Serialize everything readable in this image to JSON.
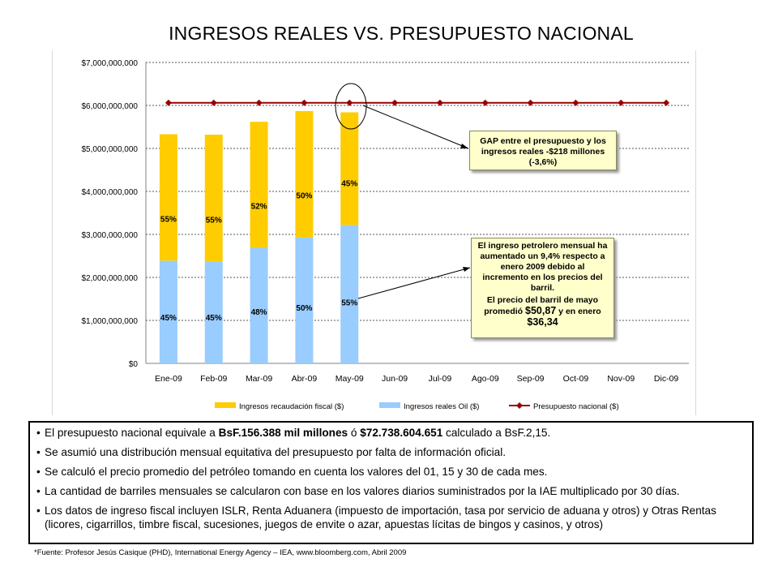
{
  "title": "INGRESOS REALES VS. PRESUPUESTO NACIONAL",
  "chart_data": {
    "type": "bar",
    "stacked": true,
    "categories": [
      "Ene-09",
      "Feb-09",
      "Mar-09",
      "Abr-09",
      "May-09",
      "Jun-09",
      "Jul-09",
      "Ago-09",
      "Sep-09",
      "Oct-09",
      "Nov-09",
      "Dic-09"
    ],
    "y_ticks": [
      "$0",
      "$1,000,000,000",
      "$2,000,000,000",
      "$3,000,000,000",
      "$4,000,000,000",
      "$5,000,000,000",
      "$6,000,000,000",
      "$7,000,000,000"
    ],
    "ylim": [
      0,
      7000000000
    ],
    "grid": true,
    "legend_placement": "bottom",
    "series": [
      {
        "name": "Ingresos reales Oil ($)",
        "kind": "bar",
        "color": "#99ccff",
        "values": [
          2390000000,
          2370000000,
          2690000000,
          2930000000,
          3220000000,
          null,
          null,
          null,
          null,
          null,
          null,
          null
        ],
        "labels": [
          "45%",
          "45%",
          "48%",
          "50%",
          "55%",
          "",
          "",
          "",
          "",
          "",
          "",
          ""
        ]
      },
      {
        "name": "Ingresos recaudación fiscal ($)",
        "kind": "bar",
        "color": "#ffcc00",
        "values": [
          2940000000,
          2950000000,
          2930000000,
          2940000000,
          2620000000,
          null,
          null,
          null,
          null,
          null,
          null,
          null
        ],
        "labels": [
          "55%",
          "55%",
          "52%",
          "50%",
          "45%",
          "",
          "",
          "",
          "",
          "",
          "",
          ""
        ]
      },
      {
        "name": "Presupuesto nacional ($)",
        "kind": "line",
        "color": "#990000",
        "values": [
          6061000000,
          6061000000,
          6061000000,
          6061000000,
          6061000000,
          6061000000,
          6061000000,
          6061000000,
          6061000000,
          6061000000,
          6061000000,
          6061000000
        ]
      }
    ],
    "legend": [
      "Ingresos recaudación fiscal ($)",
      "Ingresos reales Oil ($)",
      "Presupuesto nacional ($)"
    ]
  },
  "callouts": {
    "gap": "GAP entre el presupuesto y los ingresos reales -$218 millones (-3,6%)",
    "oil_p1": "El ingreso petrolero mensual ha aumentado un 9,4% respecto a enero 2009 debido al incremento en los precios del barril.",
    "oil_p2_a": "El precio del barril de mayo promedió ",
    "oil_p2_b": "$50,87",
    "oil_p2_c": " y en enero ",
    "oil_p2_d": "$36,34"
  },
  "notes": {
    "n1_a": "El presupuesto nacional equivale a ",
    "n1_b": "BsF.156.388 mil millones",
    "n1_c": " ó ",
    "n1_d": "$72.738.604.651",
    "n1_e": " calculado a BsF.2,15.",
    "n2": "Se asumió una distribución mensual equitativa del presupuesto por falta de información oficial.",
    "n3": "Se calculó el precio promedio del petróleo tomando en cuenta los valores del 01, 15 y 30 de cada mes.",
    "n4": "La cantidad de barriles mensuales se calcularon con base en los valores diarios suministrados por la IAE multiplicado por 30 días.",
    "n5": "Los datos de ingreso fiscal incluyen ISLR, Renta Aduanera (impuesto de importación, tasa por servicio de aduana y otros) y Otras Rentas (licores, cigarrillos, timbre fiscal, sucesiones, juegos de envite o azar, apuestas lícitas de bingos y casinos, y otros)"
  },
  "source": "*Fuente: Profesor Jesús Casique (PHD), International Energy Agency – IEA, www.bloomberg.com, Abril 2009"
}
